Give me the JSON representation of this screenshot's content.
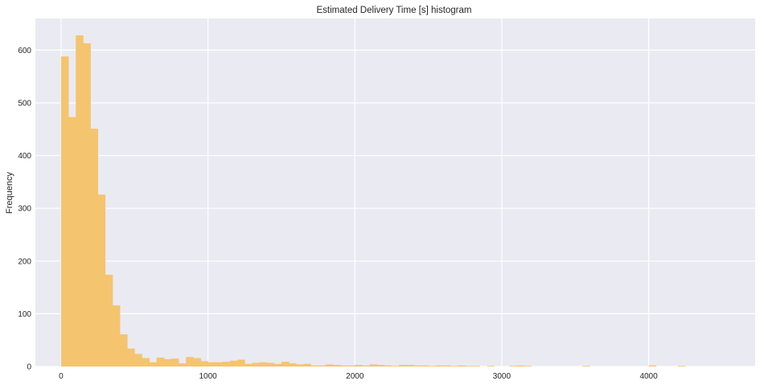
{
  "colors": {
    "plot_background": "#EAEAF2",
    "grid": "#FFFFFF",
    "bar": "#F5C46F",
    "text": "#262626"
  },
  "chart_data": {
    "type": "bar",
    "title": "Estimated Delivery Time [s] histogram",
    "xlabel": "",
    "ylabel": "Frequency",
    "xlim": [
      -175,
      4725
    ],
    "ylim": [
      0,
      660
    ],
    "xticks": [
      0,
      1000,
      2000,
      3000,
      4000
    ],
    "yticks": [
      0,
      100,
      200,
      300,
      400,
      500,
      600
    ],
    "grid": true,
    "bin_width": 50,
    "bin_edges_start": 0,
    "values": [
      588,
      473,
      628,
      613,
      451,
      326,
      174,
      116,
      61,
      34,
      24,
      16,
      8,
      17,
      14,
      15,
      6,
      18,
      16,
      10,
      8,
      8,
      9,
      11,
      13,
      5,
      7,
      8,
      7,
      5,
      9,
      6,
      4,
      5,
      2,
      2,
      4,
      3,
      2,
      2,
      3,
      2,
      4,
      3,
      2,
      1,
      3,
      3,
      2,
      2,
      1,
      2,
      2,
      1,
      2,
      1,
      1,
      0,
      1,
      0,
      0,
      1,
      2,
      1,
      0,
      0,
      0,
      0,
      0,
      0,
      0,
      1,
      0,
      0,
      0,
      0,
      0,
      0,
      0,
      0,
      2,
      0,
      0,
      0,
      1,
      0,
      0,
      0,
      0,
      0,
      0,
      0,
      0,
      0,
      0,
      0,
      1,
      0,
      0,
      0,
      0,
      0,
      0,
      0,
      0,
      0,
      0,
      0,
      0,
      0,
      0,
      0,
      0,
      0,
      0,
      0,
      0,
      0,
      0,
      0,
      0,
      0,
      0,
      0,
      0,
      0,
      0,
      0,
      0,
      0,
      0,
      0,
      0,
      0,
      0,
      0,
      0,
      0,
      0,
      0,
      0,
      0,
      0,
      0,
      0,
      0,
      0,
      0,
      0,
      0,
      0,
      1
    ]
  }
}
